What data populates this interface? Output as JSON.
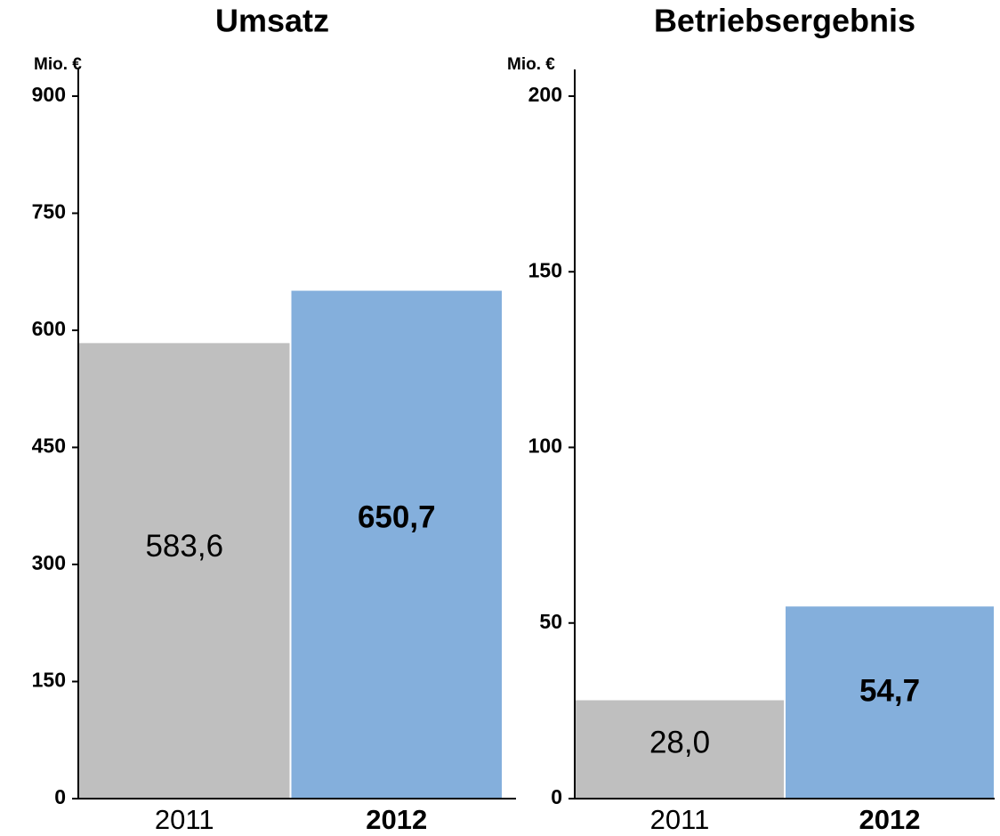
{
  "chart_data": [
    {
      "type": "bar",
      "title": "Umsatz",
      "y_label": "Mio. €",
      "categories": [
        "2011",
        "2012"
      ],
      "values": [
        583.6,
        650.7
      ],
      "value_labels": [
        "583,6",
        "650,7"
      ],
      "colors": [
        "#bfbfbf",
        "#84afdc"
      ],
      "ylim": [
        0,
        900
      ],
      "yticks": [
        0,
        150,
        300,
        450,
        600,
        750,
        900
      ]
    },
    {
      "type": "bar",
      "title": "Betriebsergebnis",
      "y_label": "Mio. €",
      "categories": [
        "2011",
        "2012"
      ],
      "values": [
        28.0,
        54.7
      ],
      "value_labels": [
        "28,0",
        "54,7"
      ],
      "colors": [
        "#bfbfbf",
        "#84afdc"
      ],
      "ylim": [
        0,
        200
      ],
      "yticks": [
        0,
        50,
        100,
        150,
        200
      ]
    }
  ]
}
